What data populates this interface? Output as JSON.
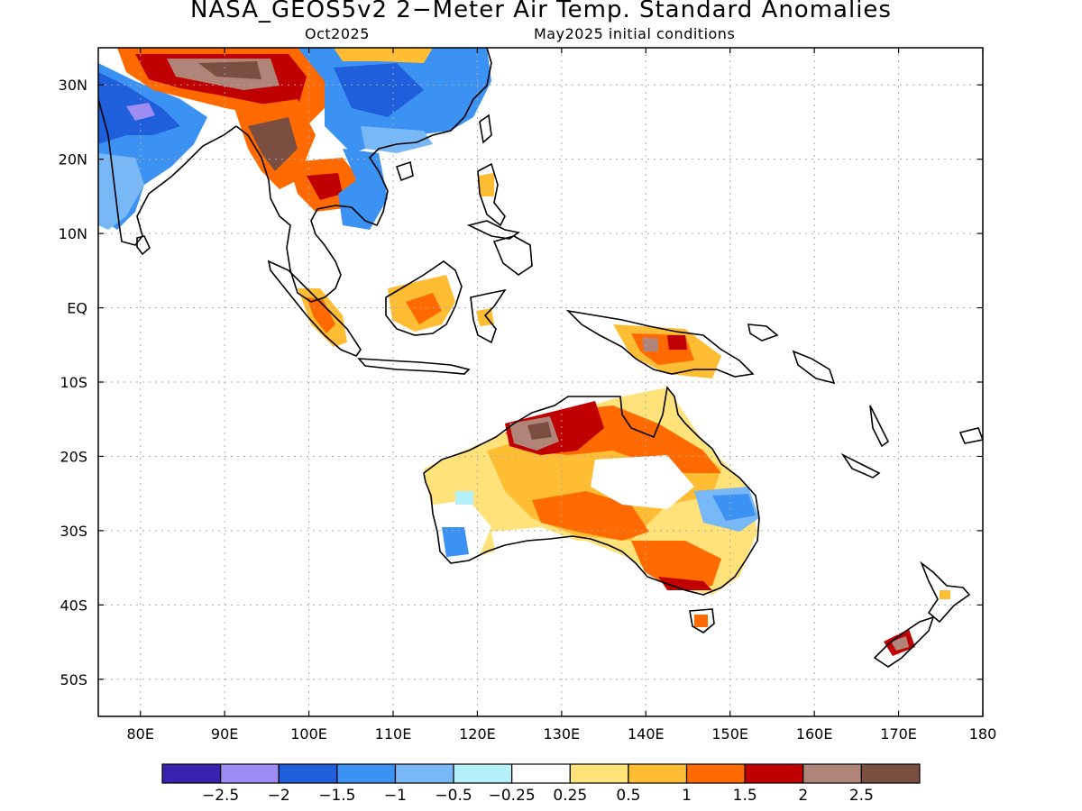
{
  "title": "NASA_GEOS5v2 2−Meter Air Temp. Standard Anomalies",
  "valid_month": "Oct2025",
  "initial_conditions": "May2025 initial conditions",
  "map": {
    "lon_range": [
      75,
      180
    ],
    "lat_range": [
      -55,
      35
    ],
    "x_ticks": [
      "80E",
      "90E",
      "100E",
      "110E",
      "120E",
      "130E",
      "140E",
      "150E",
      "160E",
      "170E",
      "180"
    ],
    "y_ticks": [
      "30N",
      "20N",
      "10N",
      "EQ",
      "10S",
      "20S",
      "30S",
      "40S",
      "50S"
    ]
  },
  "colorbar": {
    "colors": [
      "#3a22b0",
      "#9c8cf4",
      "#1f5fdc",
      "#3c92f2",
      "#78b8f7",
      "#b4f0fa",
      "#ffffff",
      "#ffe27a",
      "#ffbd34",
      "#ff6a00",
      "#c00000",
      "#b08478",
      "#7a4e40"
    ],
    "labels": [
      "−2.5",
      "−2",
      "−1.5",
      "−1",
      "−0.5",
      "−0.25",
      "0.25",
      "0.5",
      "1",
      "1.5",
      "2",
      "2.5"
    ]
  }
}
